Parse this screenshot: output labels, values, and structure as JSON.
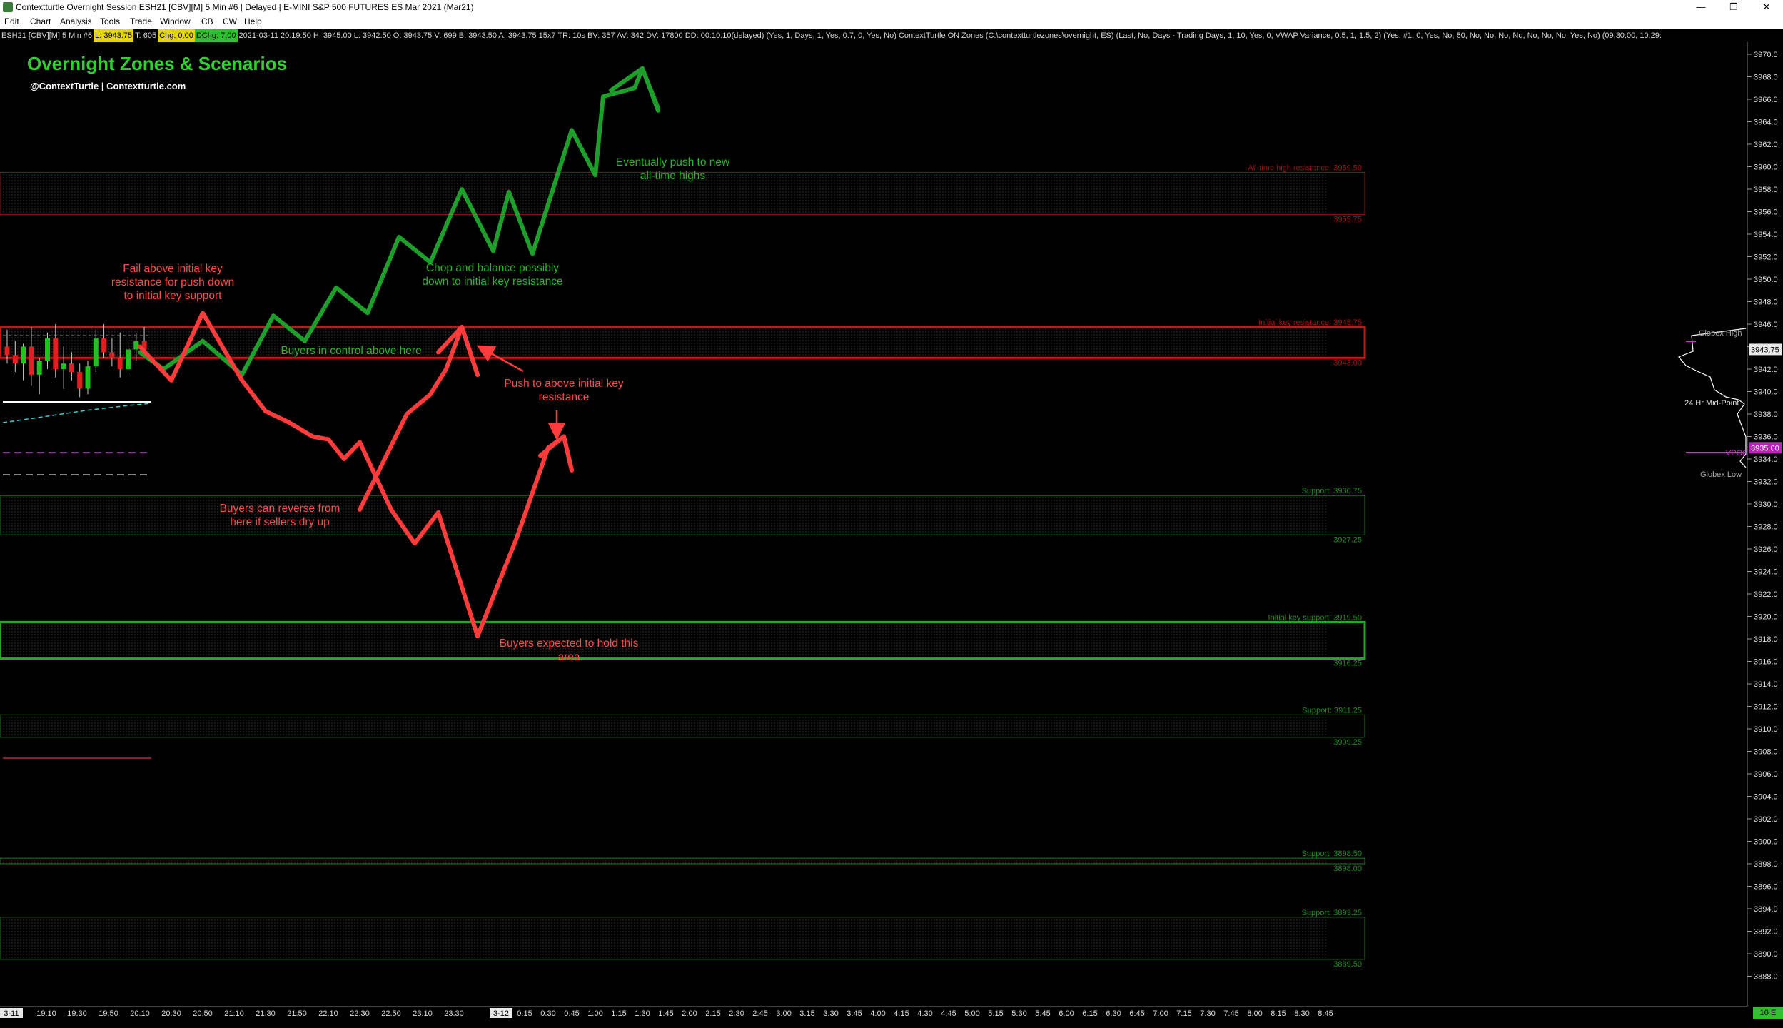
{
  "window": {
    "title": "Contextturtle Overnight Session ESH21 [CBV][M]  5 Min  #6 | Delayed | E-MINI S&P 500 FUTURES ES Mar 2021 (Mar21)",
    "minimize": "—",
    "restore": "❐",
    "close": "✕"
  },
  "menu": [
    "Edit",
    "Chart",
    "Analysis",
    "Tools",
    "Trade",
    "Window",
    "CB",
    "CW",
    "Help"
  ],
  "infobar": {
    "symbol": "ESH21 [CBV][M]  5 Min  #6",
    "last": "L: 3943.75",
    "ticks": "T: 605",
    "chg": "Chg: 0.00",
    "dchg": "DChg: 7.00",
    "rest": "2021-03-11 20:19:50  H: 3945.00  L: 3942.50  O: 3943.75  V: 699  B: 3943.50  A: 3943.75  15x7  TR: 10s  BV: 357  AV: 342  DV: 17800  DD: 00:10:10(delayed)   (Yes, 1, Days, 1, Yes, 0.7, 0, Yes, No)   ContextTurtle ON Zones   (C:\\contextturtlezones\\overnight, ES)   (Last, No, Days - Trading Days, 1, 10, Yes, 0, VWAP Variance, 0.5, 1, 1.5, 2)   (Yes, #1, 0, Yes, No, 50, No, No, No, No, No, No, No, Yes, No)   (09:30:00, 10:29:"
  },
  "brand": {
    "title": "Overnight Zones & Scenarios",
    "subtitle": "@ContextTurtle | Contextturtle.com"
  },
  "annotations": {
    "fail_above": "Fail above initial key resistance for push down to initial key support",
    "buyers_control": "Buyers in control above here",
    "chop_balance": "Chop and balance possibly down to initial key resistance",
    "eventually_push": "Eventually push to new all-time highs",
    "push_above": "Push to above initial key resistance",
    "buyers_reverse": "Buyers can reverse from here if sellers dry up",
    "buyers_hold": "Buyers expected to hold this area"
  },
  "colors": {
    "bull_path": "#1e9e2a",
    "bear_path": "#ff3b3b",
    "resistance": "#c81414",
    "support": "#22a822",
    "axis_text": "#dddddd"
  },
  "chart_data": {
    "type": "candlestick",
    "instrument": "ESH21 5 Min",
    "ylim": [
      3887,
      3971
    ],
    "y_ticks": [
      3888,
      3890,
      3892,
      3894,
      3896,
      3898,
      3900,
      3902,
      3904,
      3906,
      3908,
      3910,
      3912,
      3914,
      3916,
      3918,
      3920,
      3922,
      3924,
      3926,
      3928,
      3930,
      3932,
      3934,
      3936,
      3938,
      3940,
      3942,
      3944,
      3946,
      3948,
      3950,
      3952,
      3954,
      3956,
      3958,
      3960,
      3962,
      3964,
      3966,
      3968,
      3970
    ],
    "x_ticks": [
      "3-11",
      "19:10",
      "19:30",
      "19:50",
      "20:10",
      "20:30",
      "20:50",
      "21:10",
      "21:30",
      "21:50",
      "22:10",
      "22:30",
      "22:50",
      "23:10",
      "23:30",
      "3-12",
      "0:15",
      "0:30",
      "0:45",
      "1:00",
      "1:15",
      "1:30",
      "1:45",
      "2:00",
      "2:15",
      "2:30",
      "2:45",
      "3:00",
      "3:15",
      "3:30",
      "3:45",
      "4:00",
      "4:15",
      "4:30",
      "4:45",
      "5:00",
      "5:15",
      "5:30",
      "5:45",
      "6:00",
      "6:15",
      "6:30",
      "6:45",
      "7:00",
      "7:15",
      "7:30",
      "7:45",
      "8:00",
      "8:15",
      "8:30",
      "8:45"
    ],
    "last_price": "3943.75",
    "vpoc_label": "3935.00",
    "corner_badge": "10 E",
    "zones": [
      {
        "name": "all-time-high-resistance",
        "label_top": "All-time high resistance: 3959.50",
        "label_bottom": "3955.75",
        "top": 3959.5,
        "bottom": 3955.75,
        "kind": "resistance",
        "bold": false
      },
      {
        "name": "initial-key-resistance",
        "label_top": "Initial key resistance: 3945.75",
        "label_bottom": "3943.00",
        "top": 3945.75,
        "bottom": 3943.0,
        "kind": "resistance",
        "bold": true
      },
      {
        "name": "support-3930",
        "label_top": "Support: 3930.75",
        "label_bottom": "3927.25",
        "top": 3930.75,
        "bottom": 3927.25,
        "kind": "support",
        "bold": false
      },
      {
        "name": "initial-key-support",
        "label_top": "Initial key support: 3919.50",
        "label_bottom": "3916.25",
        "top": 3919.5,
        "bottom": 3916.25,
        "kind": "support",
        "bold": true
      },
      {
        "name": "support-3911",
        "label_top": "Support: 3911.25",
        "label_bottom": "3909.25",
        "top": 3911.25,
        "bottom": 3909.25,
        "kind": "support",
        "bold": false
      },
      {
        "name": "support-3898",
        "label_top": "Support: 3898.50",
        "label_bottom": "3898.00",
        "top": 3898.5,
        "bottom": 3898.0,
        "kind": "support",
        "bold": false
      },
      {
        "name": "support-3893",
        "label_top": "Support: 3893.25",
        "label_bottom": "3889.50",
        "top": 3893.25,
        "bottom": 3889.5,
        "kind": "support",
        "bold": false
      }
    ],
    "candles": [
      {
        "o": 3944.0,
        "h": 3945.5,
        "l": 3942.5,
        "c": 3943.25
      },
      {
        "o": 3943.25,
        "h": 3944.5,
        "l": 3941.75,
        "c": 3942.5
      },
      {
        "o": 3942.5,
        "h": 3944.25,
        "l": 3941.0,
        "c": 3944.0
      },
      {
        "o": 3944.0,
        "h": 3945.75,
        "l": 3940.5,
        "c": 3941.5
      },
      {
        "o": 3941.5,
        "h": 3943.0,
        "l": 3939.75,
        "c": 3942.75
      },
      {
        "o": 3942.75,
        "h": 3945.25,
        "l": 3942.0,
        "c": 3944.75
      },
      {
        "o": 3944.75,
        "h": 3946.0,
        "l": 3941.25,
        "c": 3942.0
      },
      {
        "o": 3942.0,
        "h": 3944.0,
        "l": 3940.25,
        "c": 3942.5
      },
      {
        "o": 3942.5,
        "h": 3943.5,
        "l": 3941.0,
        "c": 3941.75
      },
      {
        "o": 3941.75,
        "h": 3942.5,
        "l": 3939.5,
        "c": 3940.25
      },
      {
        "o": 3940.25,
        "h": 3942.75,
        "l": 3939.75,
        "c": 3942.25
      },
      {
        "o": 3942.25,
        "h": 3945.5,
        "l": 3941.75,
        "c": 3944.75
      },
      {
        "o": 3944.75,
        "h": 3946.0,
        "l": 3943.0,
        "c": 3943.5
      },
      {
        "o": 3943.5,
        "h": 3944.75,
        "l": 3942.25,
        "c": 3943.0
      },
      {
        "o": 3943.0,
        "h": 3945.25,
        "l": 3941.25,
        "c": 3942.0
      },
      {
        "o": 3942.0,
        "h": 3944.5,
        "l": 3941.5,
        "c": 3943.75
      },
      {
        "o": 3943.75,
        "h": 3945.25,
        "l": 3942.75,
        "c": 3944.5
      },
      {
        "o": 3944.5,
        "h": 3945.75,
        "l": 3943.5,
        "c": 3943.75
      }
    ],
    "scenarios": [
      {
        "name": "bullish-path",
        "color": "#1e9e2a",
        "points": [
          [
            "20:10",
            3943.5
          ],
          [
            "20:25",
            3942.0
          ],
          [
            "20:50",
            3944.5
          ],
          [
            "21:15",
            3941.5
          ],
          [
            "21:35",
            3946.75
          ],
          [
            "21:55",
            3944.5
          ],
          [
            "22:15",
            3949.25
          ],
          [
            "22:35",
            3947.0
          ],
          [
            "22:55",
            3953.75
          ],
          [
            "23:15",
            3951.5
          ],
          [
            "23:35",
            3958.0
          ],
          [
            "23:55",
            3952.5
          ],
          [
            "0:05",
            3957.75
          ],
          [
            "0:20",
            3952.25
          ],
          [
            "0:45",
            3963.25
          ],
          [
            "1:00",
            3959.25
          ],
          [
            "1:05",
            3966.25
          ],
          [
            "1:25",
            3967.0
          ],
          [
            "1:30",
            3968.75
          ],
          [
            "1:40",
            3965.0
          ]
        ]
      },
      {
        "name": "bearish-path",
        "color": "#ff3b3b",
        "points": [
          [
            "20:10",
            3944.0
          ],
          [
            "20:30",
            3941.0
          ],
          [
            "20:50",
            3947.0
          ],
          [
            "21:15",
            3941.0
          ],
          [
            "21:30",
            3938.25
          ],
          [
            "21:45",
            3937.25
          ],
          [
            "22:00",
            3936.0
          ],
          [
            "22:10",
            3935.75
          ],
          [
            "22:20",
            3934.0
          ],
          [
            "22:30",
            3935.5
          ],
          [
            "22:50",
            3929.5
          ],
          [
            "23:05",
            3926.5
          ],
          [
            "23:20",
            3929.25
          ],
          [
            "23:45",
            3918.25
          ],
          [
            "0:10",
            3927.0
          ],
          [
            "0:30",
            3935.0
          ],
          [
            "0:40",
            3936.0
          ],
          [
            "0:45",
            3933.0
          ]
        ]
      },
      {
        "name": "bearish-alt-path",
        "color": "#ff3b3b",
        "points": [
          [
            "22:30",
            3929.5
          ],
          [
            "23:00",
            3938.0
          ],
          [
            "23:15",
            3939.75
          ],
          [
            "23:25",
            3942.0
          ],
          [
            "23:35",
            3945.75
          ],
          [
            "23:45",
            3941.5
          ]
        ]
      }
    ],
    "right_profile": {
      "globex_high": "Globex High",
      "midpoint": "24 Hr Mid-Point",
      "vpoc": "VPOC",
      "globex_low": "Globex Low"
    }
  }
}
